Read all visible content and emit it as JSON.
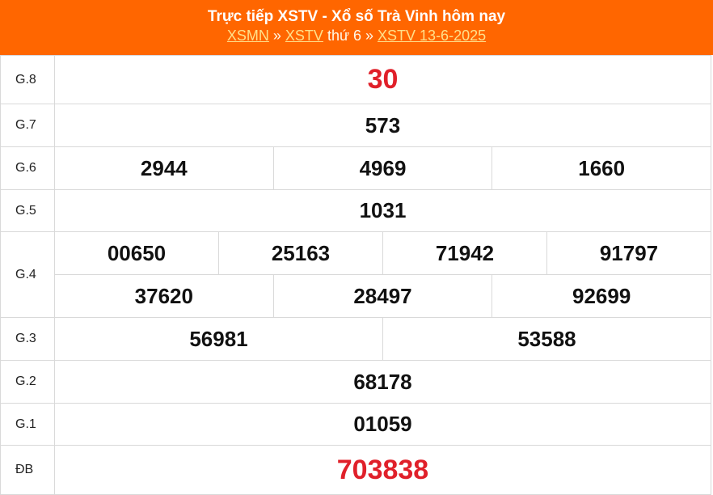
{
  "header": {
    "title": "Trực tiếp XSTV - Xổ số Trà Vinh hôm nay",
    "breadcrumb": {
      "link1": "XSMN",
      "sep1": " » ",
      "link2": "XSTV",
      "day": " thứ 6 ",
      "sep2": "» ",
      "link3": "XSTV 13-6-2025"
    }
  },
  "colors": {
    "header_bg": "#ff6600",
    "special": "#e0202a"
  },
  "prizes": [
    {
      "label": "G.8",
      "numbers": [
        "30"
      ]
    },
    {
      "label": "G.7",
      "numbers": [
        "573"
      ]
    },
    {
      "label": "G.6",
      "numbers": [
        "2944",
        "4969",
        "1660"
      ]
    },
    {
      "label": "G.5",
      "numbers": [
        "1031"
      ]
    },
    {
      "label": "G.4",
      "numbers": [
        "00650",
        "25163",
        "71942",
        "91797",
        "37620",
        "28497",
        "92699"
      ]
    },
    {
      "label": "G.3",
      "numbers": [
        "56981",
        "53588"
      ]
    },
    {
      "label": "G.2",
      "numbers": [
        "68178"
      ]
    },
    {
      "label": "G.1",
      "numbers": [
        "01059"
      ]
    },
    {
      "label": "ĐB",
      "numbers": [
        "703838"
      ]
    }
  ]
}
